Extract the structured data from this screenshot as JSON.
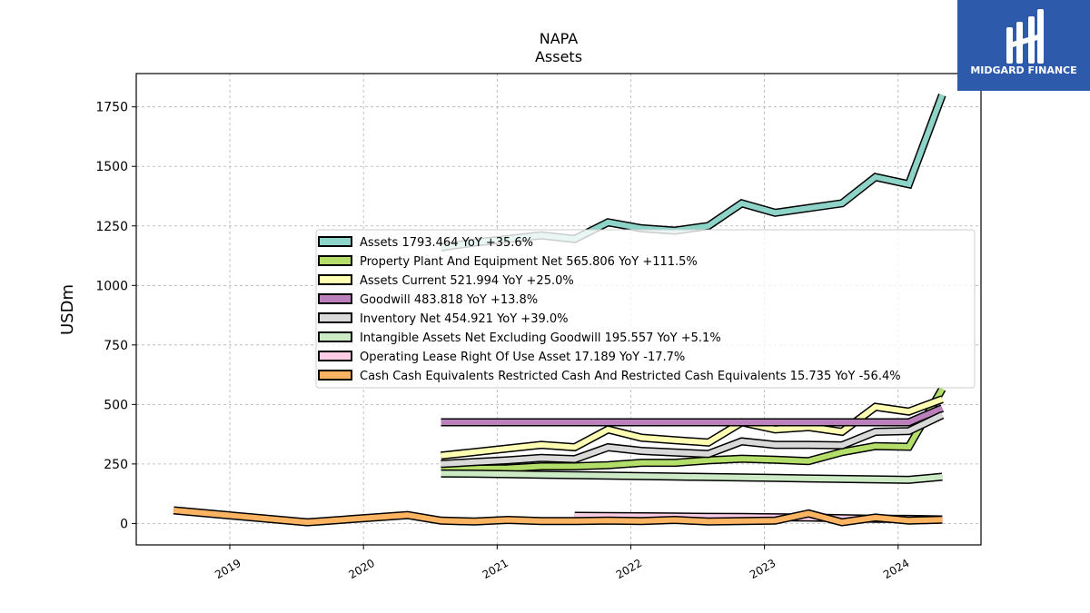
{
  "chart_data": {
    "type": "line",
    "title": "NAPA",
    "subtitle": "Assets",
    "ylabel": "USDm",
    "xlabel": "",
    "ylim": [
      -90,
      1890
    ],
    "xlim": [
      2018.3,
      2024.62
    ],
    "yticks": [
      0,
      250,
      500,
      750,
      1000,
      1250,
      1500,
      1750
    ],
    "xticks": [
      {
        "value": 2019,
        "label": "2019"
      },
      {
        "value": 2020,
        "label": "2020"
      },
      {
        "value": 2021,
        "label": "2021"
      },
      {
        "value": 2022,
        "label": "2022"
      },
      {
        "value": 2023,
        "label": "2023"
      },
      {
        "value": 2024,
        "label": "2024"
      }
    ],
    "grid": true,
    "legend_position": "center-right",
    "series": [
      {
        "name": "Assets",
        "legend": "Assets  1793.464 YoY +35.6%",
        "color": "#8dd3c7",
        "x": [
          2020.58,
          2020.83,
          2021.08,
          2021.33,
          2021.58,
          2021.83,
          2022.08,
          2022.33,
          2022.58,
          2022.83,
          2023.08,
          2023.33,
          2023.58,
          2023.83,
          2024.08,
          2024.33
        ],
        "y": [
          1160,
          1180,
          1195,
          1210,
          1195,
          1265,
          1240,
          1230,
          1250,
          1345,
          1305,
          1325,
          1345,
          1455,
          1425,
          1800
        ]
      },
      {
        "name": "Property Plant And Equipment Net",
        "legend": "Property Plant And Equipment Net  565.806 YoY +111.5%",
        "color": "#b3de69",
        "x": [
          2020.58,
          2020.83,
          2021.08,
          2021.33,
          2021.58,
          2021.83,
          2022.08,
          2022.33,
          2022.58,
          2022.83,
          2023.08,
          2023.33,
          2023.58,
          2023.83,
          2024.08,
          2024.33
        ],
        "y": [
          225,
          230,
          232,
          240,
          240,
          245,
          255,
          255,
          265,
          272,
          268,
          262,
          300,
          325,
          322,
          565
        ]
      },
      {
        "name": "Assets Current",
        "legend": "Assets Current  521.994 YoY +25.0%",
        "color": "#ffffb3",
        "x": [
          2020.58,
          2020.83,
          2021.08,
          2021.33,
          2021.58,
          2021.83,
          2022.08,
          2022.33,
          2022.58,
          2022.83,
          2023.08,
          2023.33,
          2023.58,
          2023.83,
          2024.08,
          2024.33
        ],
        "y": [
          285,
          300,
          315,
          330,
          320,
          395,
          360,
          350,
          340,
          425,
          395,
          405,
          385,
          490,
          470,
          522
        ]
      },
      {
        "name": "Goodwill",
        "legend": "Goodwill  483.818 YoY +13.8%",
        "color": "#bc80bd",
        "x": [
          2020.58,
          2020.83,
          2021.08,
          2021.33,
          2021.58,
          2021.83,
          2022.08,
          2022.33,
          2022.58,
          2022.83,
          2023.08,
          2023.33,
          2023.58,
          2023.83,
          2024.08,
          2024.33
        ],
        "y": [
          425,
          425,
          425,
          425,
          425,
          425,
          425,
          425,
          425,
          425,
          425,
          425,
          425,
          425,
          425,
          484
        ]
      },
      {
        "name": "Inventory Net",
        "legend": "Inventory Net  454.921 YoY +39.0%",
        "color": "#d9d9d9",
        "x": [
          2020.58,
          2020.83,
          2021.08,
          2021.33,
          2021.58,
          2021.83,
          2022.08,
          2022.33,
          2022.58,
          2022.83,
          2023.08,
          2023.33,
          2023.58,
          2023.83,
          2024.08,
          2024.33
        ],
        "y": [
          250,
          258,
          265,
          275,
          270,
          320,
          305,
          298,
          292,
          345,
          330,
          330,
          328,
          385,
          388,
          455
        ]
      },
      {
        "name": "Intangible Assets Net Excluding Goodwill",
        "legend": "Intangible Assets Net Excluding Goodwill  195.557 YoY +5.1%",
        "color": "#ccebc5",
        "x": [
          2020.58,
          2020.83,
          2021.08,
          2021.33,
          2021.58,
          2021.83,
          2022.08,
          2022.33,
          2022.58,
          2022.83,
          2023.08,
          2023.33,
          2023.58,
          2023.83,
          2024.08,
          2024.33
        ],
        "y": [
          210,
          209,
          207,
          205,
          203,
          201,
          199,
          197,
          195,
          193,
          191,
          189,
          187,
          185,
          183,
          196
        ]
      },
      {
        "name": "Operating Lease Right Of Use Asset",
        "legend": "Operating Lease Right Of Use Asset  17.189 YoY -17.7%",
        "color": "#fccde5",
        "x": [
          2021.58,
          2021.83,
          2022.08,
          2022.33,
          2022.58,
          2022.83,
          2023.08,
          2023.33,
          2023.58,
          2023.83,
          2024.08,
          2024.33
        ],
        "y": [
          32,
          31,
          30,
          29,
          28,
          27,
          26,
          25,
          22,
          20,
          19,
          17
        ]
      },
      {
        "name": "Cash Cash Equivalents Restricted Cash And Restricted Cash Equivalents",
        "legend": "Cash Cash Equivalents Restricted Cash And Restricted Cash Equivalents  15.735 YoY -56.4%",
        "color": "#fdb462",
        "x": [
          2018.58,
          2019.58,
          2020.33,
          2020.58,
          2020.83,
          2021.08,
          2021.33,
          2021.58,
          2021.83,
          2022.08,
          2022.33,
          2022.58,
          2022.83,
          2023.08,
          2023.33,
          2023.58,
          2023.83,
          2024.08,
          2024.33
        ],
        "y": [
          55,
          5,
          35,
          12,
          8,
          15,
          10,
          10,
          12,
          10,
          15,
          8,
          10,
          12,
          42,
          5,
          25,
          12,
          16
        ]
      }
    ]
  },
  "logo": {
    "text": "MIDGARD FINANCE",
    "background": "#2e5aac"
  }
}
